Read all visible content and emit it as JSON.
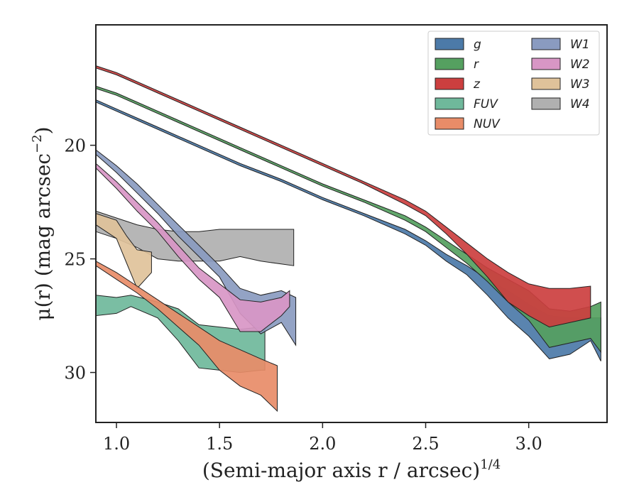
{
  "chart_data": {
    "type": "area",
    "xlabel": "(Semi-major axis r / arcsec)",
    "xlabel_sup": "1/4",
    "ylabel": "μ(r) (mag arcsec",
    "ylabel_sup": "−2",
    "ylabel_tail": ")",
    "xlim": [
      0.9,
      3.38
    ],
    "ylim": [
      32.2,
      14.7
    ],
    "xticks": [
      1.0,
      1.5,
      2.0,
      2.5,
      3.0
    ],
    "xtick_labels": [
      "1.0",
      "1.5",
      "2.0",
      "2.5",
      "3.0"
    ],
    "yticks": [
      20,
      25,
      30
    ],
    "ytick_labels": [
      "20",
      "25",
      "30"
    ],
    "grid": false,
    "legend_position": "top-right",
    "legend_columns": 2,
    "series": [
      {
        "name": "g",
        "color": "#4c7aa8",
        "points": [
          [
            0.9,
            18.0,
            18.1
          ],
          [
            1.0,
            18.4,
            18.5
          ],
          [
            1.2,
            19.2,
            19.3
          ],
          [
            1.4,
            20.0,
            20.1
          ],
          [
            1.6,
            20.8,
            20.9
          ],
          [
            1.8,
            21.5,
            21.6
          ],
          [
            2.0,
            22.3,
            22.4
          ],
          [
            2.2,
            23.0,
            23.1
          ],
          [
            2.4,
            23.7,
            23.9
          ],
          [
            2.5,
            24.2,
            24.4
          ],
          [
            2.6,
            24.8,
            25.1
          ],
          [
            2.7,
            25.3,
            25.7
          ],
          [
            2.8,
            25.9,
            26.6
          ],
          [
            2.9,
            26.4,
            27.6
          ],
          [
            3.0,
            27.0,
            28.4
          ],
          [
            3.1,
            27.5,
            29.4
          ],
          [
            3.2,
            27.6,
            29.2
          ],
          [
            3.3,
            27.6,
            28.6
          ],
          [
            3.35,
            27.6,
            29.5
          ]
        ]
      },
      {
        "name": "r",
        "color": "#55a060",
        "points": [
          [
            0.9,
            17.4,
            17.5
          ],
          [
            1.0,
            17.7,
            17.8
          ],
          [
            1.2,
            18.5,
            18.6
          ],
          [
            1.4,
            19.3,
            19.4
          ],
          [
            1.6,
            20.1,
            20.2
          ],
          [
            1.8,
            20.9,
            21.0
          ],
          [
            2.0,
            21.7,
            21.8
          ],
          [
            2.2,
            22.4,
            22.5
          ],
          [
            2.4,
            23.1,
            23.3
          ],
          [
            2.5,
            23.6,
            23.8
          ],
          [
            2.6,
            24.2,
            24.5
          ],
          [
            2.7,
            24.8,
            25.2
          ],
          [
            2.8,
            25.4,
            26.0
          ],
          [
            2.9,
            25.9,
            26.9
          ],
          [
            3.0,
            26.4,
            27.7
          ],
          [
            3.1,
            27.2,
            28.9
          ],
          [
            3.2,
            27.3,
            28.7
          ],
          [
            3.3,
            27.1,
            28.5
          ],
          [
            3.35,
            26.9,
            29.1
          ]
        ]
      },
      {
        "name": "z",
        "color": "#cc3f3f",
        "points": [
          [
            0.9,
            16.5,
            16.6
          ],
          [
            1.0,
            16.8,
            16.9
          ],
          [
            1.2,
            17.6,
            17.7
          ],
          [
            1.4,
            18.4,
            18.5
          ],
          [
            1.6,
            19.2,
            19.3
          ],
          [
            1.8,
            20.0,
            20.1
          ],
          [
            2.0,
            20.8,
            20.9
          ],
          [
            2.2,
            21.6,
            21.7
          ],
          [
            2.4,
            22.4,
            22.6
          ],
          [
            2.5,
            22.9,
            23.1
          ],
          [
            2.6,
            23.6,
            23.9
          ],
          [
            2.7,
            24.3,
            24.8
          ],
          [
            2.8,
            25.0,
            25.8
          ],
          [
            2.9,
            25.6,
            26.9
          ],
          [
            3.0,
            26.1,
            27.5
          ],
          [
            3.1,
            26.3,
            28.0
          ],
          [
            3.2,
            26.3,
            27.8
          ],
          [
            3.3,
            26.2,
            27.6
          ]
        ]
      },
      {
        "name": "FUV",
        "color": "#6fb89b",
        "points": [
          [
            0.9,
            26.6,
            27.5
          ],
          [
            1.0,
            26.7,
            27.4
          ],
          [
            1.07,
            26.6,
            27.1
          ],
          [
            1.2,
            26.9,
            27.6
          ],
          [
            1.3,
            27.2,
            28.6
          ],
          [
            1.4,
            27.9,
            29.8
          ],
          [
            1.5,
            28.0,
            29.9
          ],
          [
            1.6,
            28.1,
            30.0
          ],
          [
            1.7,
            28.0,
            29.9
          ],
          [
            1.72,
            28.0,
            29.9
          ]
        ]
      },
      {
        "name": "NUV",
        "color": "#e88c68",
        "points": [
          [
            0.9,
            25.1,
            25.3
          ],
          [
            1.0,
            25.6,
            25.9
          ],
          [
            1.1,
            26.2,
            26.5
          ],
          [
            1.2,
            26.8,
            27.2
          ],
          [
            1.3,
            27.4,
            28.0
          ],
          [
            1.4,
            28.0,
            28.8
          ],
          [
            1.5,
            28.6,
            29.9
          ],
          [
            1.6,
            29.0,
            30.6
          ],
          [
            1.7,
            29.4,
            31.0
          ],
          [
            1.78,
            29.7,
            31.7
          ]
        ]
      },
      {
        "name": "W1",
        "color": "#8a9bc0",
        "points": [
          [
            0.9,
            20.2,
            20.4
          ],
          [
            1.0,
            20.9,
            21.2
          ],
          [
            1.1,
            21.7,
            22.1
          ],
          [
            1.2,
            22.6,
            23.0
          ],
          [
            1.3,
            23.5,
            24.0
          ],
          [
            1.4,
            24.4,
            24.9
          ],
          [
            1.5,
            25.3,
            25.8
          ],
          [
            1.6,
            26.3,
            27.4
          ],
          [
            1.7,
            26.6,
            28.3
          ],
          [
            1.8,
            26.4,
            27.8
          ],
          [
            1.87,
            26.7,
            28.8
          ]
        ]
      },
      {
        "name": "W2",
        "color": "#d896c5",
        "points": [
          [
            0.9,
            20.8,
            21.0
          ],
          [
            1.0,
            21.6,
            21.9
          ],
          [
            1.1,
            22.5,
            22.9
          ],
          [
            1.2,
            23.4,
            23.8
          ],
          [
            1.3,
            24.4,
            24.9
          ],
          [
            1.4,
            25.4,
            25.9
          ],
          [
            1.5,
            26.1,
            26.7
          ],
          [
            1.6,
            26.8,
            28.2
          ],
          [
            1.7,
            26.9,
            28.2
          ],
          [
            1.8,
            26.7,
            27.5
          ],
          [
            1.84,
            26.4,
            27.1
          ]
        ]
      },
      {
        "name": "W3",
        "color": "#dfc29a",
        "points": [
          [
            0.9,
            23.0,
            23.5
          ],
          [
            1.0,
            23.3,
            24.1
          ],
          [
            1.05,
            24.0,
            25.2
          ],
          [
            1.1,
            24.6,
            26.3
          ],
          [
            1.17,
            24.7,
            25.6
          ]
        ]
      },
      {
        "name": "W4",
        "color": "#b0b0b0",
        "points": [
          [
            0.9,
            22.9,
            23.8
          ],
          [
            1.0,
            23.2,
            24.1
          ],
          [
            1.1,
            23.5,
            24.5
          ],
          [
            1.2,
            23.7,
            25.0
          ],
          [
            1.3,
            23.8,
            25.1
          ],
          [
            1.4,
            23.8,
            25.1
          ],
          [
            1.5,
            23.7,
            25.1
          ],
          [
            1.6,
            23.7,
            24.9
          ],
          [
            1.7,
            23.7,
            25.1
          ],
          [
            1.86,
            23.7,
            25.3
          ]
        ]
      }
    ]
  }
}
